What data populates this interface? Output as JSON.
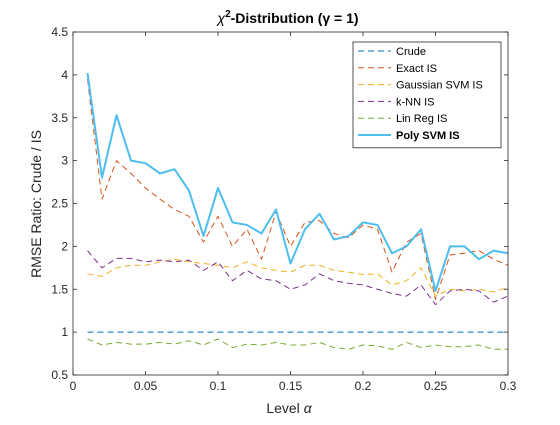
{
  "chart_data": {
    "type": "line",
    "title": {
      "pre": "χ",
      "sup": "2",
      "post": "-Distribution (γ = 1)"
    },
    "xlabel": {
      "text": "Level ",
      "symbol": "α"
    },
    "ylabel": "RMSE Ratio: Crude / IS",
    "xlim": [
      0,
      0.3
    ],
    "ylim": [
      0.5,
      4.5
    ],
    "xticks": [
      0,
      0.05,
      0.1,
      0.15,
      0.2,
      0.25,
      0.3
    ],
    "xtick_labels": [
      "0",
      "0.05",
      "0.1",
      "0.15",
      "0.2",
      "0.25",
      "0.3"
    ],
    "yticks": [
      0.5,
      1,
      1.5,
      2,
      2.5,
      3,
      3.5,
      4,
      4.5
    ],
    "ytick_labels": [
      "0.5",
      "1",
      "1.5",
      "2",
      "2.5",
      "3",
      "3.5",
      "4",
      "4.5"
    ],
    "grid": false,
    "legend_position": "top-right",
    "x": [
      0.01,
      0.02,
      0.03,
      0.04,
      0.05,
      0.06,
      0.07,
      0.08,
      0.09,
      0.1,
      0.11,
      0.12,
      0.13,
      0.14,
      0.15,
      0.16,
      0.17,
      0.18,
      0.19,
      0.2,
      0.21,
      0.22,
      0.23,
      0.24,
      0.25,
      0.26,
      0.27,
      0.28,
      0.29,
      0.3
    ],
    "series": [
      {
        "name": "Crude",
        "color": "#0072BD",
        "dash": "dashed",
        "bold": false,
        "values": [
          1,
          1,
          1,
          1,
          1,
          1,
          1,
          1,
          1,
          1,
          1,
          1,
          1,
          1,
          1,
          1,
          1,
          1,
          1,
          1,
          1,
          1,
          1,
          1,
          1,
          1,
          1,
          1,
          1,
          1
        ]
      },
      {
        "name": "Exact IS",
        "color": "#D95319",
        "dash": "dashed",
        "bold": false,
        "values": [
          3.95,
          2.55,
          3.0,
          2.85,
          2.68,
          2.55,
          2.43,
          2.35,
          2.05,
          2.35,
          2.0,
          2.2,
          1.85,
          2.4,
          2.0,
          2.28,
          2.3,
          2.15,
          2.1,
          2.25,
          2.2,
          1.7,
          2.05,
          2.15,
          1.38,
          1.9,
          1.92,
          1.95,
          1.85,
          1.78
        ]
      },
      {
        "name": "Gaussian SVM IS",
        "color": "#EDB120",
        "dash": "dashed",
        "bold": false,
        "values": [
          1.68,
          1.65,
          1.75,
          1.78,
          1.78,
          1.82,
          1.85,
          1.82,
          1.8,
          1.78,
          1.75,
          1.82,
          1.75,
          1.72,
          1.7,
          1.78,
          1.78,
          1.72,
          1.7,
          1.67,
          1.68,
          1.55,
          1.6,
          1.75,
          1.42,
          1.5,
          1.48,
          1.5,
          1.47,
          1.52
        ]
      },
      {
        "name": "k-NN IS",
        "color": "#7E2F8E",
        "dash": "dashed",
        "bold": false,
        "values": [
          1.95,
          1.75,
          1.86,
          1.86,
          1.82,
          1.84,
          1.82,
          1.84,
          1.72,
          1.82,
          1.6,
          1.72,
          1.62,
          1.6,
          1.5,
          1.55,
          1.68,
          1.6,
          1.57,
          1.55,
          1.5,
          1.45,
          1.42,
          1.55,
          1.32,
          1.48,
          1.5,
          1.48,
          1.35,
          1.42
        ]
      },
      {
        "name": "Lin Reg IS",
        "color": "#77AC30",
        "dash": "dashed",
        "bold": false,
        "values": [
          0.92,
          0.85,
          0.88,
          0.86,
          0.86,
          0.88,
          0.86,
          0.9,
          0.85,
          0.92,
          0.82,
          0.86,
          0.85,
          0.88,
          0.85,
          0.85,
          0.88,
          0.82,
          0.8,
          0.85,
          0.84,
          0.8,
          0.88,
          0.82,
          0.85,
          0.83,
          0.83,
          0.85,
          0.8,
          0.8
        ]
      },
      {
        "name": "Poly SVM IS",
        "color": "#4DBEEE",
        "dash": "solid",
        "bold": true,
        "values": [
          4.02,
          2.8,
          3.53,
          3.0,
          2.97,
          2.85,
          2.9,
          2.65,
          2.12,
          2.68,
          2.28,
          2.25,
          2.15,
          2.43,
          1.8,
          2.2,
          2.38,
          2.08,
          2.12,
          2.28,
          2.25,
          1.92,
          2.0,
          2.2,
          1.48,
          2.0,
          2.0,
          1.85,
          1.95,
          1.92
        ]
      }
    ]
  }
}
